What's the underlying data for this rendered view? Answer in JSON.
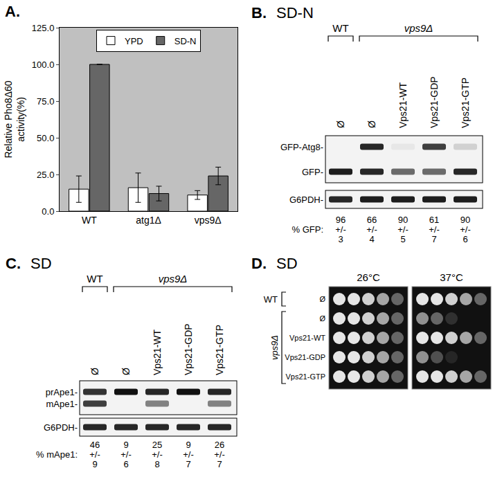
{
  "chart_data": {
    "type": "bar",
    "title": "A.",
    "ylabel": "Relative Pho8Δ60\nactivity(%)",
    "categories": [
      "WT",
      "atg1Δ",
      "vps9Δ"
    ],
    "series": [
      {
        "name": "YPD",
        "color": "#ffffff",
        "values": [
          15,
          16,
          11
        ],
        "errors": [
          9,
          10,
          3
        ]
      },
      {
        "name": "SD-N",
        "color": "#666666",
        "values": [
          100,
          12,
          24
        ],
        "errors": [
          0,
          5,
          6
        ]
      }
    ],
    "ylim": [
      0,
      125
    ],
    "yticks": [
      {
        "value": 0,
        "label": "0.0"
      },
      {
        "value": 25,
        "label": "25.0"
      },
      {
        "value": 50,
        "label": "50.0"
      },
      {
        "value": 75,
        "label": "75.0"
      },
      {
        "value": 100,
        "label": "100.0"
      },
      {
        "value": 125,
        "label": "125.0"
      }
    ],
    "grid": false,
    "legend": "top"
  },
  "blots": [
    {
      "label": "B.",
      "condition": "SD-N",
      "groups": [
        {
          "label": "WT",
          "lanes": [
            0,
            0
          ]
        },
        {
          "label": "vps9Δ",
          "lanes": [
            1,
            4
          ]
        }
      ],
      "lanes": [
        "Ø",
        "Ø",
        "Vps21-WT",
        "Vps21-GDP",
        "Vps21-GTP"
      ],
      "rows": [
        {
          "name": "GFP-Atg8-",
          "intensities": [
            0,
            0.9,
            0.05,
            0.8,
            0.15
          ]
        },
        {
          "name": "GFP-",
          "intensities": [
            0.95,
            0.9,
            0.6,
            0.6,
            0.9
          ]
        },
        {
          "name": "G6PDH-",
          "intensities": [
            0.9,
            0.95,
            0.95,
            0.95,
            0.95
          ]
        }
      ],
      "quant": {
        "label": "% GFP:",
        "values": [
          96,
          66,
          90,
          61,
          90
        ],
        "pm": "+/-",
        "errors": [
          3,
          4,
          5,
          7,
          6
        ]
      }
    },
    {
      "label": "C.",
      "condition": "SD",
      "groups": [
        {
          "label": "WT",
          "lanes": [
            0,
            0
          ]
        },
        {
          "label": "vps9Δ",
          "lanes": [
            1,
            4
          ]
        }
      ],
      "lanes": [
        "Ø",
        "Ø",
        "Vps21-WT",
        "Vps21-GDP",
        "Vps21-GTP"
      ],
      "rows": [
        {
          "name": "prApe1-",
          "intensities": [
            0.85,
            1,
            0.9,
            1,
            0.9
          ]
        },
        {
          "name": "mApe1-",
          "intensities": [
            0.8,
            0,
            0.5,
            0,
            0.5
          ]
        },
        {
          "name": "G6PDH-",
          "intensities": [
            0.9,
            0.9,
            0.9,
            0.9,
            0.9
          ]
        }
      ],
      "quant": {
        "label": "% mApe1:",
        "values": [
          46,
          9,
          25,
          9,
          26
        ],
        "pm": "+/-",
        "errors": [
          9,
          6,
          8,
          7,
          7
        ]
      }
    }
  ],
  "spot_assay": {
    "label": "D.",
    "condition": "SD",
    "groups": [
      {
        "label": "WT",
        "rows": [
          0,
          0
        ]
      },
      {
        "label": "vps9Δ",
        "rows": [
          1,
          4
        ]
      }
    ],
    "rows": [
      "Ø",
      "Ø",
      "Vps21-WT",
      "Vps21-GDP",
      "Vps21-GTP"
    ],
    "plates": [
      {
        "label": "26°C",
        "growth": [
          [
            1,
            1,
            0.9,
            0.7,
            0.4
          ],
          [
            1,
            1,
            0.9,
            0.7,
            0.4
          ],
          [
            1,
            1,
            0.9,
            0.7,
            0.4
          ],
          [
            1,
            1,
            0.9,
            0.7,
            0.4
          ],
          [
            1,
            1,
            0.9,
            0.7,
            0.4
          ]
        ]
      },
      {
        "label": "37°C",
        "growth": [
          [
            1,
            1,
            0.9,
            0.7,
            0.4
          ],
          [
            0.6,
            0.4,
            0.15,
            0,
            0
          ],
          [
            1,
            1,
            0.9,
            0.7,
            0.4
          ],
          [
            0.6,
            0.3,
            0.1,
            0,
            0
          ],
          [
            1,
            1,
            0.9,
            0.7,
            0.4
          ]
        ]
      }
    ]
  }
}
